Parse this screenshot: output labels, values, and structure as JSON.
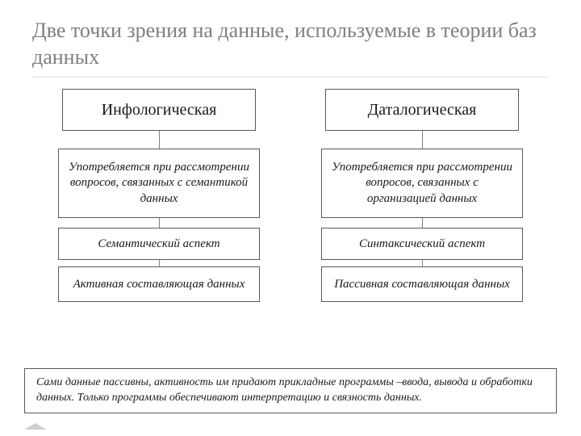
{
  "title": "Две точки зрения на данные, используемые в теории баз данных",
  "columns": {
    "left": {
      "header": "Инфологическая",
      "description": "Употребляется при рассмотрении вопросов, связанных с семантикой данных",
      "aspect": "Семантический аспект",
      "component": "Активная составляющая данных"
    },
    "right": {
      "header": "Даталогическая",
      "description": "Употребляется при рассмотрении вопросов, связанных с организацией данных",
      "aspect": "Синтаксический аспект",
      "component": "Пассивная составляющая данных"
    }
  },
  "bottom_note": "Сами данные пассивны, активность им придают прикладные программы –ввода, вывода и обработки данных. Только программы обеспечивают интерпретацию и связность данных.",
  "styling": {
    "box_border_color": "#595959",
    "title_color": "#7f7f7f",
    "text_color": "#1a1a1a",
    "background_color": "#ffffff",
    "divider_color": "#bfbfbf",
    "title_fontsize": 26,
    "header_fontsize": 20,
    "body_fontsize": 15,
    "note_fontsize": 14,
    "font_family": "Georgia",
    "italic_boxes": true,
    "slide_width": 720,
    "slide_height": 540
  },
  "structure_type": "two-column-hierarchy"
}
